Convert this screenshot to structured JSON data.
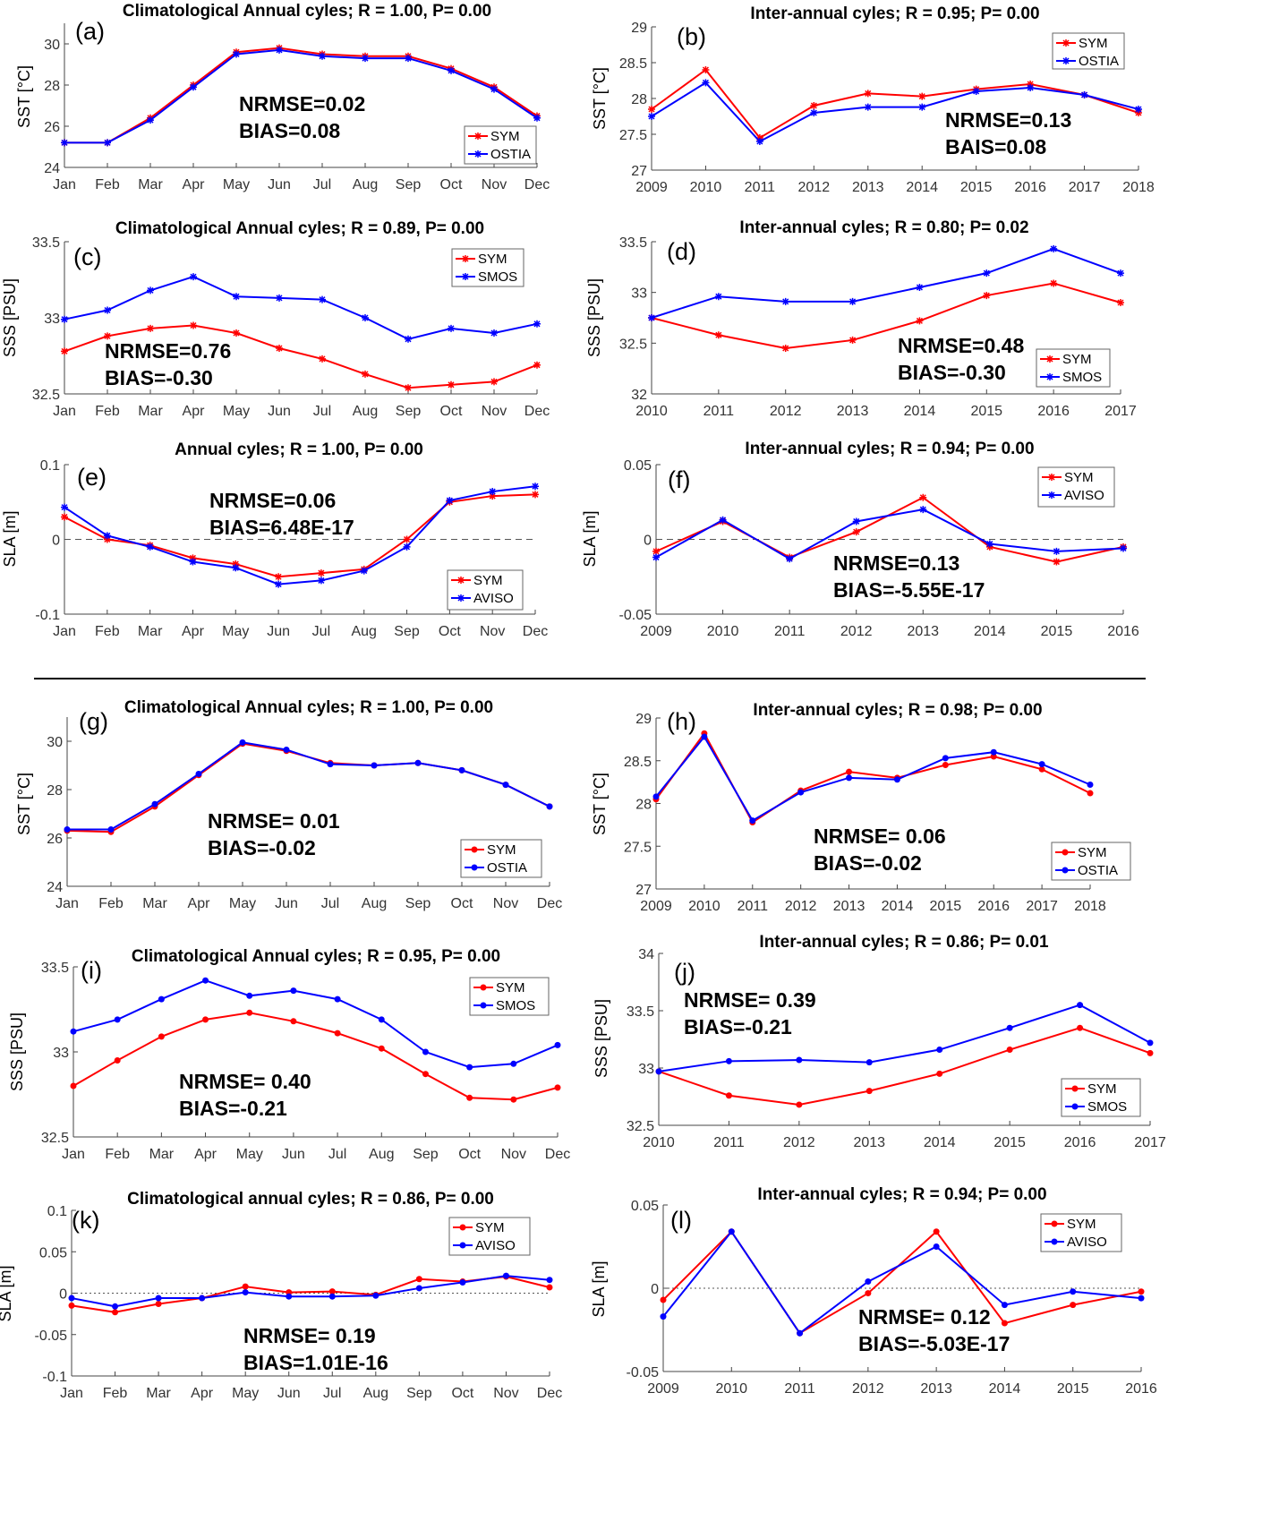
{
  "colors": {
    "SYM": "#ff0000",
    "OBS": "#0000ff"
  },
  "chart_data": [
    {
      "id": "a",
      "type": "line",
      "panel_label": "(a)",
      "title": "Climatological Annual cyles; R = 1.00, P= 0.00",
      "ylabel": "SST [°C]",
      "categories": [
        "Jan",
        "Feb",
        "Mar",
        "Apr",
        "May",
        "Jun",
        "Jul",
        "Aug",
        "Sep",
        "Oct",
        "Nov",
        "Dec"
      ],
      "ylim": [
        24,
        31
      ],
      "yticks": [
        24,
        26,
        28,
        30
      ],
      "marker": "star",
      "annotation": [
        "NRMSE=0.02",
        "BIAS=0.08"
      ],
      "series": [
        {
          "name": "SYM",
          "values": [
            25.2,
            25.2,
            26.4,
            28.0,
            29.6,
            29.8,
            29.5,
            29.4,
            29.4,
            28.8,
            27.9,
            26.5
          ]
        },
        {
          "name": "OSTIA",
          "values": [
            25.2,
            25.2,
            26.3,
            27.9,
            29.5,
            29.7,
            29.4,
            29.3,
            29.3,
            28.7,
            27.8,
            26.4
          ]
        }
      ]
    },
    {
      "id": "b",
      "type": "line",
      "panel_label": "(b)",
      "title": "Inter-annual cyles; R = 0.95; P= 0.00",
      "ylabel": "SST [°C]",
      "categories": [
        "2009",
        "2010",
        "2011",
        "2012",
        "2013",
        "2014",
        "2015",
        "2016",
        "2017",
        "2018"
      ],
      "ylim": [
        27,
        29
      ],
      "yticks": [
        27,
        27.5,
        28,
        28.5,
        29
      ],
      "marker": "star",
      "annotation": [
        "NRMSE=0.13",
        "BAIS=0.08"
      ],
      "series": [
        {
          "name": "SYM",
          "values": [
            27.85,
            28.4,
            27.45,
            27.9,
            28.07,
            28.03,
            28.13,
            28.2,
            28.05,
            27.8
          ]
        },
        {
          "name": "OSTIA",
          "values": [
            27.75,
            28.22,
            27.4,
            27.8,
            27.88,
            27.88,
            28.1,
            28.15,
            28.05,
            27.85
          ]
        }
      ]
    },
    {
      "id": "c",
      "type": "line",
      "panel_label": "(c)",
      "title": "Climatological Annual cyles; R = 0.89, P= 0.00",
      "ylabel": "SSS [PSU]",
      "categories": [
        "Jan",
        "Feb",
        "Mar",
        "Apr",
        "May",
        "Jun",
        "Jul",
        "Aug",
        "Sep",
        "Oct",
        "Nov",
        "Dec"
      ],
      "ylim": [
        32.5,
        33.5
      ],
      "yticks": [
        32.5,
        33,
        33.5
      ],
      "marker": "star",
      "annotation": [
        "NRMSE=0.76",
        "BIAS=-0.30"
      ],
      "series": [
        {
          "name": "SYM",
          "values": [
            32.78,
            32.88,
            32.93,
            32.95,
            32.9,
            32.8,
            32.73,
            32.63,
            32.54,
            32.56,
            32.58,
            32.69
          ]
        },
        {
          "name": "SMOS",
          "values": [
            32.99,
            33.05,
            33.18,
            33.27,
            33.14,
            33.13,
            33.12,
            33.0,
            32.86,
            32.93,
            32.9,
            32.96
          ]
        }
      ]
    },
    {
      "id": "d",
      "type": "line",
      "panel_label": "(d)",
      "title": "Inter-annual cyles; R = 0.80; P= 0.02",
      "ylabel": "SSS [PSU]",
      "categories": [
        "2010",
        "2011",
        "2012",
        "2013",
        "2014",
        "2015",
        "2016",
        "2017"
      ],
      "ylim": [
        32,
        33.5
      ],
      "yticks": [
        32,
        32.5,
        33,
        33.5
      ],
      "marker": "star",
      "annotation": [
        "NRMSE=0.48",
        "BIAS=-0.30"
      ],
      "series": [
        {
          "name": "SYM",
          "values": [
            32.75,
            32.58,
            32.45,
            32.53,
            32.72,
            32.97,
            33.09,
            32.9
          ]
        },
        {
          "name": "SMOS",
          "values": [
            32.75,
            32.96,
            32.91,
            32.91,
            33.05,
            33.19,
            33.43,
            33.19
          ]
        }
      ]
    },
    {
      "id": "e",
      "type": "line",
      "panel_label": "(e)",
      "title": "Annual cyles; R = 1.00, P= 0.00",
      "ylabel": "SLA [m]",
      "categories": [
        "Jan",
        "Feb",
        "Mar",
        "Apr",
        "May",
        "Jun",
        "Jul",
        "Aug",
        "Sep",
        "Oct",
        "Nov",
        "Dec"
      ],
      "ylim": [
        -0.1,
        0.1
      ],
      "yticks": [
        -0.1,
        0,
        0.1
      ],
      "marker": "star",
      "zero_line": "dashed",
      "annotation": [
        "NRMSE=0.06",
        "BIAS=6.48E-17"
      ],
      "series": [
        {
          "name": "SYM",
          "values": [
            0.03,
            0.0,
            -0.008,
            -0.025,
            -0.033,
            -0.05,
            -0.045,
            -0.04,
            0.0,
            0.05,
            0.058,
            0.06
          ]
        },
        {
          "name": "AVISO",
          "values": [
            0.043,
            0.005,
            -0.01,
            -0.03,
            -0.038,
            -0.06,
            -0.055,
            -0.042,
            -0.01,
            0.052,
            0.064,
            0.071
          ]
        }
      ]
    },
    {
      "id": "f",
      "type": "line",
      "panel_label": "(f)",
      "title": "Inter-annual cyles; R = 0.94; P= 0.00",
      "ylabel": "SLA [m]",
      "categories": [
        "2009",
        "2010",
        "2011",
        "2012",
        "2013",
        "2014",
        "2015",
        "2016"
      ],
      "ylim": [
        -0.05,
        0.05
      ],
      "yticks": [
        -0.05,
        0,
        0.05
      ],
      "marker": "star",
      "zero_line": "dashed",
      "annotation": [
        "NRMSE=0.13",
        "BIAS=-5.55E-17"
      ],
      "series": [
        {
          "name": "SYM",
          "values": [
            -0.008,
            0.012,
            -0.012,
            0.005,
            0.028,
            -0.005,
            -0.015,
            -0.005
          ]
        },
        {
          "name": "AVISO",
          "values": [
            -0.012,
            0.013,
            -0.013,
            0.012,
            0.02,
            -0.003,
            -0.008,
            -0.006
          ]
        }
      ]
    },
    {
      "id": "g",
      "type": "line",
      "panel_label": "(g)",
      "title": "Climatological Annual cyles; R = 1.00, P= 0.00",
      "ylabel": "SST [°C]",
      "categories": [
        "Jan",
        "Feb",
        "Mar",
        "Apr",
        "May",
        "Jun",
        "Jul",
        "Aug",
        "Sep",
        "Oct",
        "Nov",
        "Dec"
      ],
      "ylim": [
        24,
        31
      ],
      "yticks": [
        24,
        26,
        28,
        30
      ],
      "marker": "dot",
      "annotation": [
        "NRMSE= 0.01",
        "BIAS=-0.02"
      ],
      "series": [
        {
          "name": "SYM",
          "values": [
            26.3,
            26.25,
            27.3,
            28.6,
            29.9,
            29.6,
            29.1,
            29.0,
            29.1,
            28.8,
            28.2,
            27.3
          ]
        },
        {
          "name": "OSTIA",
          "values": [
            26.35,
            26.35,
            27.4,
            28.65,
            29.95,
            29.65,
            29.05,
            29.0,
            29.1,
            28.8,
            28.2,
            27.3
          ]
        }
      ]
    },
    {
      "id": "h",
      "type": "line",
      "panel_label": "(h)",
      "title": "Inter-annual cyles; R = 0.98; P= 0.00",
      "ylabel": "SST [°C]",
      "categories": [
        "2009",
        "2010",
        "2011",
        "2012",
        "2013",
        "2014",
        "2015",
        "2016",
        "2017",
        "2018"
      ],
      "ylim": [
        27,
        29
      ],
      "yticks": [
        27,
        27.5,
        28,
        28.5,
        29
      ],
      "marker": "dot",
      "annotation": [
        "NRMSE= 0.06",
        "BIAS=-0.02"
      ],
      "series": [
        {
          "name": "SYM",
          "values": [
            28.05,
            28.82,
            27.78,
            28.15,
            28.37,
            28.3,
            28.45,
            28.55,
            28.4,
            28.12
          ]
        },
        {
          "name": "OSTIA",
          "values": [
            28.08,
            28.78,
            27.8,
            28.13,
            28.3,
            28.28,
            28.53,
            28.6,
            28.46,
            28.22
          ]
        }
      ]
    },
    {
      "id": "i",
      "type": "line",
      "panel_label": "(i)",
      "title": "Climatological Annual cyles; R = 0.95, P= 0.00",
      "ylabel": "SSS [PSU]",
      "categories": [
        "Jan",
        "Feb",
        "Mar",
        "Apr",
        "May",
        "Jun",
        "Jul",
        "Aug",
        "Sep",
        "Oct",
        "Nov",
        "Dec"
      ],
      "ylim": [
        32.5,
        33.5
      ],
      "yticks": [
        32.5,
        33,
        33.5
      ],
      "marker": "dot",
      "annotation": [
        "NRMSE= 0.40",
        "BIAS=-0.21"
      ],
      "series": [
        {
          "name": "SYM",
          "values": [
            32.8,
            32.95,
            33.09,
            33.19,
            33.23,
            33.18,
            33.11,
            33.02,
            32.87,
            32.73,
            32.72,
            32.79
          ]
        },
        {
          "name": "SMOS",
          "values": [
            33.12,
            33.19,
            33.31,
            33.42,
            33.33,
            33.36,
            33.31,
            33.19,
            33.0,
            32.91,
            32.93,
            33.04
          ]
        }
      ]
    },
    {
      "id": "j",
      "type": "line",
      "panel_label": "(j)",
      "title": "Inter-annual cyles; R = 0.86; P= 0.01",
      "ylabel": "SSS [PSU]",
      "categories": [
        "2010",
        "2011",
        "2012",
        "2013",
        "2014",
        "2015",
        "2016",
        "2017"
      ],
      "ylim": [
        32.5,
        34
      ],
      "yticks": [
        32.5,
        33,
        33.5,
        34
      ],
      "marker": "dot",
      "annotation": [
        "NRMSE= 0.39",
        "BIAS=-0.21"
      ],
      "series": [
        {
          "name": "SYM",
          "values": [
            32.97,
            32.76,
            32.68,
            32.8,
            32.95,
            33.16,
            33.35,
            33.13
          ]
        },
        {
          "name": "SMOS",
          "values": [
            32.97,
            33.06,
            33.07,
            33.05,
            33.16,
            33.35,
            33.55,
            33.22
          ]
        }
      ]
    },
    {
      "id": "k",
      "type": "line",
      "panel_label": "(k)",
      "title": "Climatological annual cyles; R = 0.86, P= 0.00",
      "ylabel": "SLA [m]",
      "categories": [
        "Jan",
        "Feb",
        "Mar",
        "Apr",
        "May",
        "Jun",
        "Jul",
        "Aug",
        "Sep",
        "Oct",
        "Nov",
        "Dec"
      ],
      "ylim": [
        -0.1,
        0.1
      ],
      "yticks": [
        -0.1,
        -0.05,
        0,
        0.05,
        0.1
      ],
      "marker": "dot",
      "zero_line": "dotted",
      "annotation": [
        "NRMSE= 0.19",
        "BIAS=1.01E-16"
      ],
      "series": [
        {
          "name": "SYM",
          "values": [
            -0.015,
            -0.023,
            -0.013,
            -0.006,
            0.008,
            0.001,
            0.002,
            -0.002,
            0.017,
            0.014,
            0.02,
            0.007
          ]
        },
        {
          "name": "AVISO",
          "values": [
            -0.006,
            -0.016,
            -0.006,
            -0.006,
            0.001,
            -0.004,
            -0.004,
            -0.003,
            0.006,
            0.013,
            0.021,
            0.016
          ]
        }
      ]
    },
    {
      "id": "l",
      "type": "line",
      "panel_label": "(l)",
      "title": "Inter-annual cyles; R = 0.94; P= 0.00",
      "ylabel": "SLA [m]",
      "categories": [
        "2009",
        "2010",
        "2011",
        "2012",
        "2013",
        "2014",
        "2015",
        "2016"
      ],
      "ylim": [
        -0.05,
        0.05
      ],
      "yticks": [
        -0.05,
        0,
        0.05
      ],
      "marker": "dot",
      "zero_line": "dotted",
      "annotation": [
        "NRMSE= 0.12",
        "BIAS=-5.03E-17"
      ],
      "series": [
        {
          "name": "SYM",
          "values": [
            -0.007,
            0.034,
            -0.027,
            -0.003,
            0.034,
            -0.021,
            -0.01,
            -0.002
          ]
        },
        {
          "name": "AVISO",
          "values": [
            -0.017,
            0.034,
            -0.027,
            0.004,
            0.025,
            -0.01,
            -0.002,
            -0.006
          ]
        }
      ]
    }
  ]
}
